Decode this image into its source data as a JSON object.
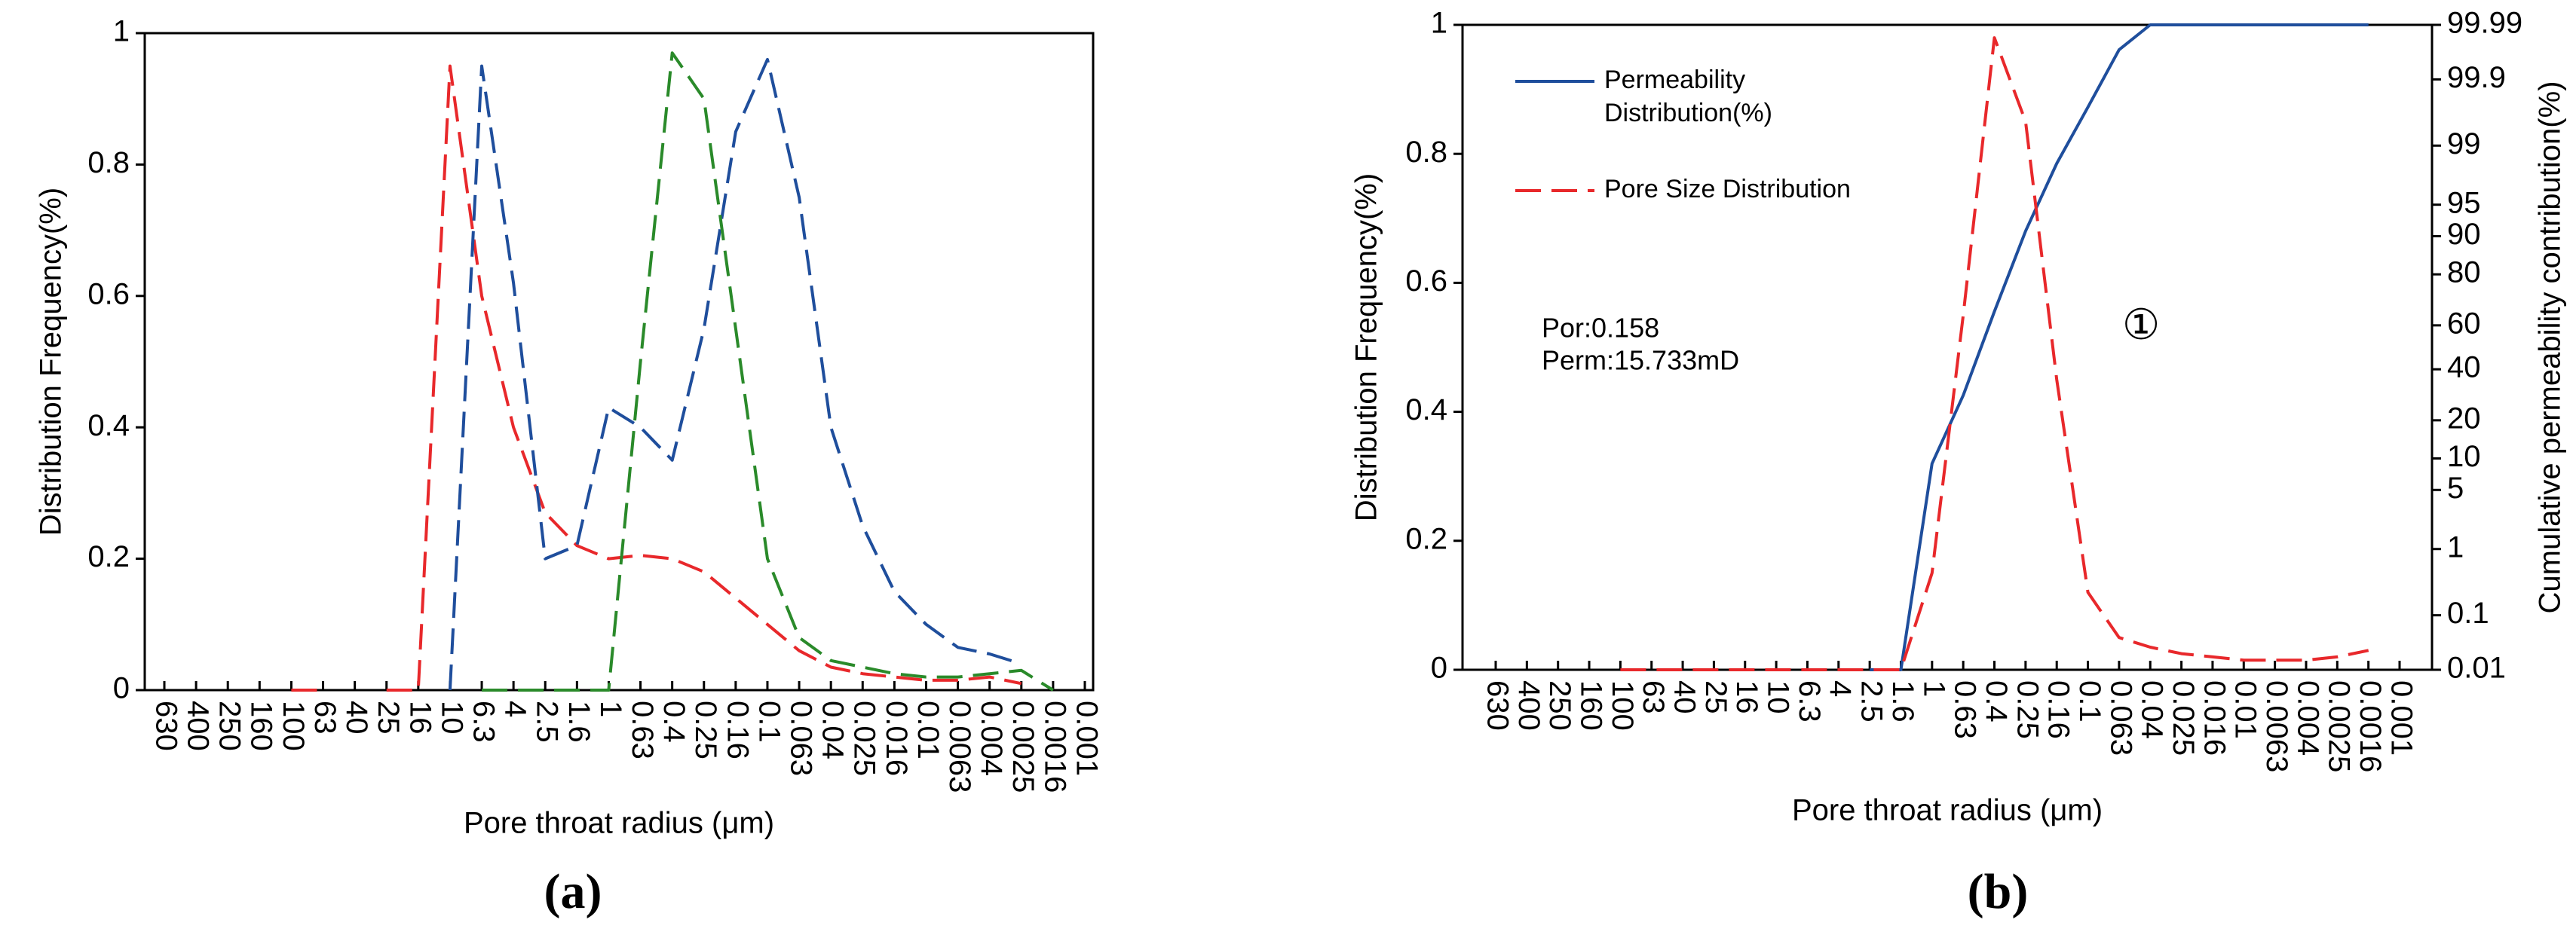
{
  "chart_data": [
    {
      "type": "line",
      "caption": "(a)",
      "ylabel": "Distribution Frequency(%)",
      "xlabel": "Pore throat radius (μm)",
      "categories": [
        "630",
        "400",
        "250",
        "160",
        "100",
        "63",
        "40",
        "25",
        "16",
        "10",
        "6.3",
        "4",
        "2.5",
        "1.6",
        "1",
        "0.63",
        "0.4",
        "0.25",
        "0.16",
        "0.1",
        "0.063",
        "0.04",
        "0.025",
        "0.016",
        "0.01",
        "0.0063",
        "0.004",
        "0.0025",
        "0.0016",
        "0.001"
      ],
      "ylim": [
        0,
        1
      ],
      "yticks": [
        0,
        0.2,
        0.4,
        0.6,
        0.8,
        1
      ],
      "grid": false,
      "series": [
        {
          "color": "#e8282b",
          "linestyle": "dashed",
          "values": [
            null,
            null,
            null,
            null,
            0,
            0,
            null,
            0,
            0,
            0.95,
            0.6,
            0.4,
            0.27,
            0.22,
            0.2,
            0.205,
            0.2,
            0.18,
            0.14,
            0.1,
            0.06,
            0.035,
            0.025,
            0.02,
            0.015,
            0.015,
            0.02,
            0.01,
            null,
            null
          ]
        },
        {
          "color": "#1f4e9c",
          "linestyle": "dashed",
          "values": [
            null,
            null,
            null,
            null,
            null,
            null,
            null,
            null,
            null,
            0,
            0.95,
            0.62,
            0.2,
            0.22,
            0.43,
            0.4,
            0.35,
            0.55,
            0.85,
            0.96,
            0.75,
            0.4,
            0.25,
            0.15,
            0.1,
            0.065,
            0.055,
            0.04,
            null,
            null
          ]
        },
        {
          "color": "#2a8a2a",
          "linestyle": "dashed",
          "values": [
            null,
            null,
            null,
            null,
            null,
            null,
            null,
            null,
            null,
            null,
            0,
            0,
            0,
            0,
            0,
            0.5,
            0.97,
            0.9,
            0.55,
            0.2,
            0.08,
            0.045,
            0.035,
            0.025,
            0.02,
            0.02,
            0.025,
            0.03,
            0,
            null
          ]
        }
      ]
    },
    {
      "type": "line",
      "caption": "(b)",
      "ylabel": "Distribution Frequency(%)",
      "xlabel": "Pore throat radius (μm)",
      "y2label": "Cumulative permeability contribution(%)",
      "categories": [
        "630",
        "400",
        "250",
        "160",
        "100",
        "63",
        "40",
        "25",
        "16",
        "10",
        "6.3",
        "4",
        "2.5",
        "1.6",
        "1",
        "0.63",
        "0.4",
        "0.25",
        "0.16",
        "0.1",
        "0.063",
        "0.04",
        "0.025",
        "0.016",
        "0.01",
        "0.0063",
        "0.004",
        "0.0025",
        "0.0016",
        "0.001"
      ],
      "ylim": [
        0,
        1
      ],
      "yticks": [
        0,
        0.2,
        0.4,
        0.6,
        0.8,
        1
      ],
      "y2lim": [
        0.01,
        99.99
      ],
      "y2scale": "probability",
      "y2ticks": [
        0.01,
        0.1,
        1,
        5,
        10,
        20,
        40,
        60,
        80,
        90,
        95,
        99,
        99.9,
        99.99
      ],
      "grid": false,
      "legend": "upper left",
      "annotations": [
        {
          "text": "Por:0.158",
          "color": "#1f4e9c"
        },
        {
          "text": "Perm:15.733mD",
          "color": "#1f4e9c"
        },
        {
          "text": "①",
          "color": "#000000"
        }
      ],
      "series": [
        {
          "name": "Permeability Distribution(%)",
          "color": "#1f4e9c",
          "linestyle": "solid",
          "axis": "y2",
          "values": [
            null,
            null,
            null,
            null,
            null,
            null,
            null,
            null,
            null,
            null,
            null,
            null,
            0.01,
            0.01,
            9,
            29,
            66,
            91,
            98.3,
            99.72,
            99.97,
            99.99,
            99.99,
            99.99,
            99.99,
            99.99,
            99.99,
            99.99,
            99.99,
            null
          ]
        },
        {
          "name": "Pore Size Distribution",
          "color": "#e8282b",
          "linestyle": "dashed",
          "values": [
            null,
            null,
            null,
            null,
            0,
            0,
            0,
            0,
            0,
            0,
            0,
            0,
            0,
            0,
            0.15,
            0.55,
            0.98,
            0.85,
            0.45,
            0.12,
            0.05,
            0.035,
            0.025,
            0.02,
            0.015,
            0.015,
            0.015,
            0.02,
            0.03,
            null
          ]
        }
      ]
    }
  ]
}
